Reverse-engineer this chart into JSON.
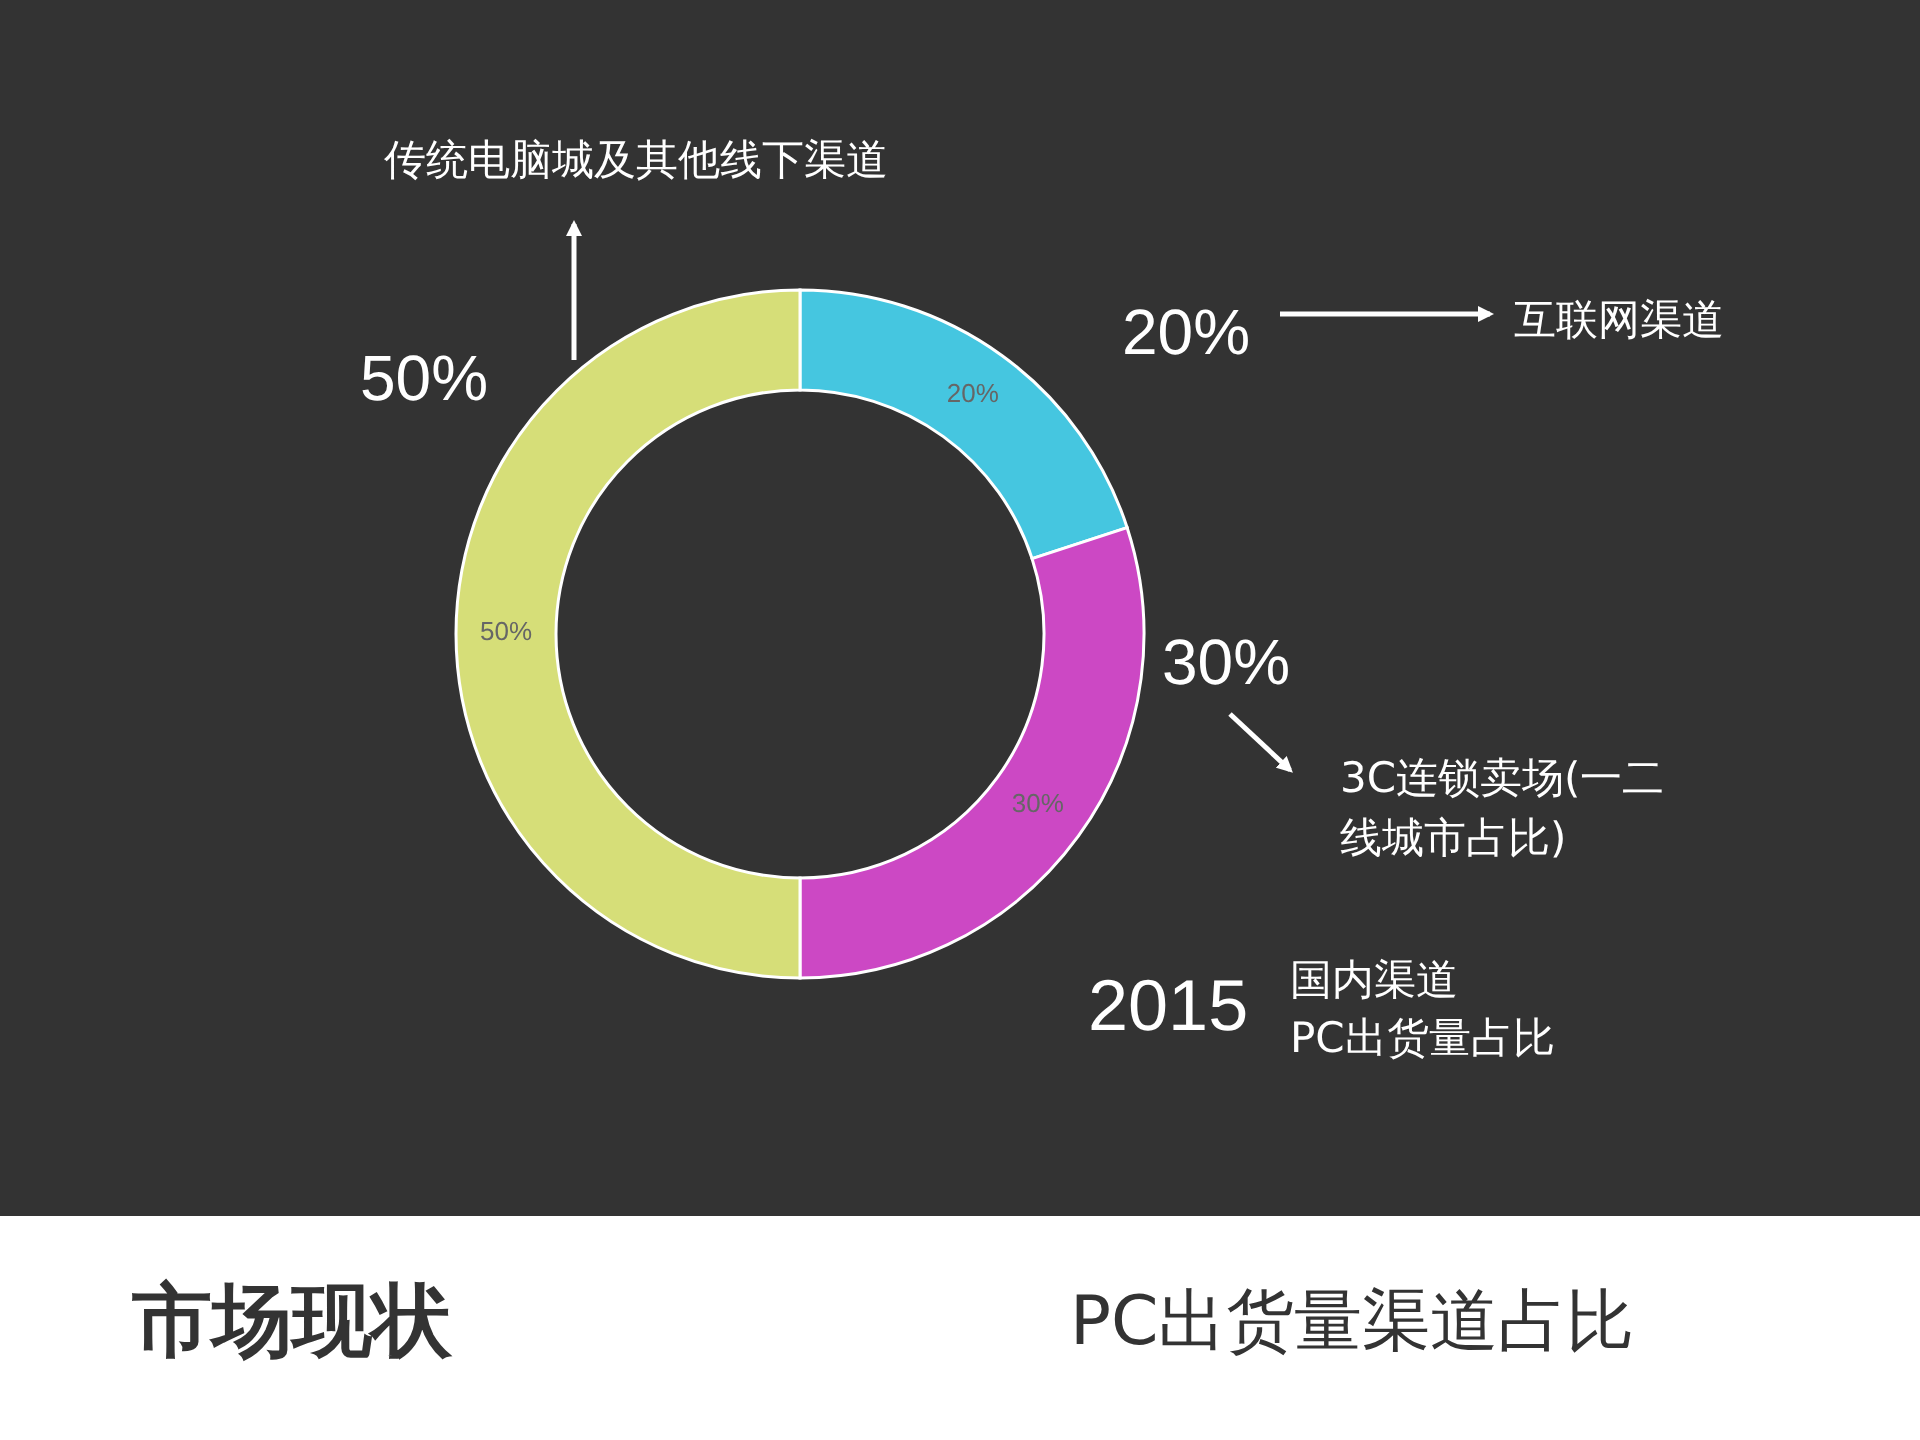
{
  "chart_data": {
    "type": "donut",
    "title": "市场现状",
    "subtitle": "PC出货量渠道占比",
    "categories": [
      "互联网渠道",
      "3C连锁卖场(一二线城市占比)",
      "传统电脑城及其他线下渠道"
    ],
    "values": [
      20,
      30,
      50
    ],
    "colors": [
      "#45c6e0",
      "#cc48c4",
      "#d6de78"
    ],
    "value_labels": [
      "20%",
      "30%",
      "50%"
    ],
    "annotations": [
      "2015",
      "国内渠道",
      "PC出货量占比"
    ]
  }
}
